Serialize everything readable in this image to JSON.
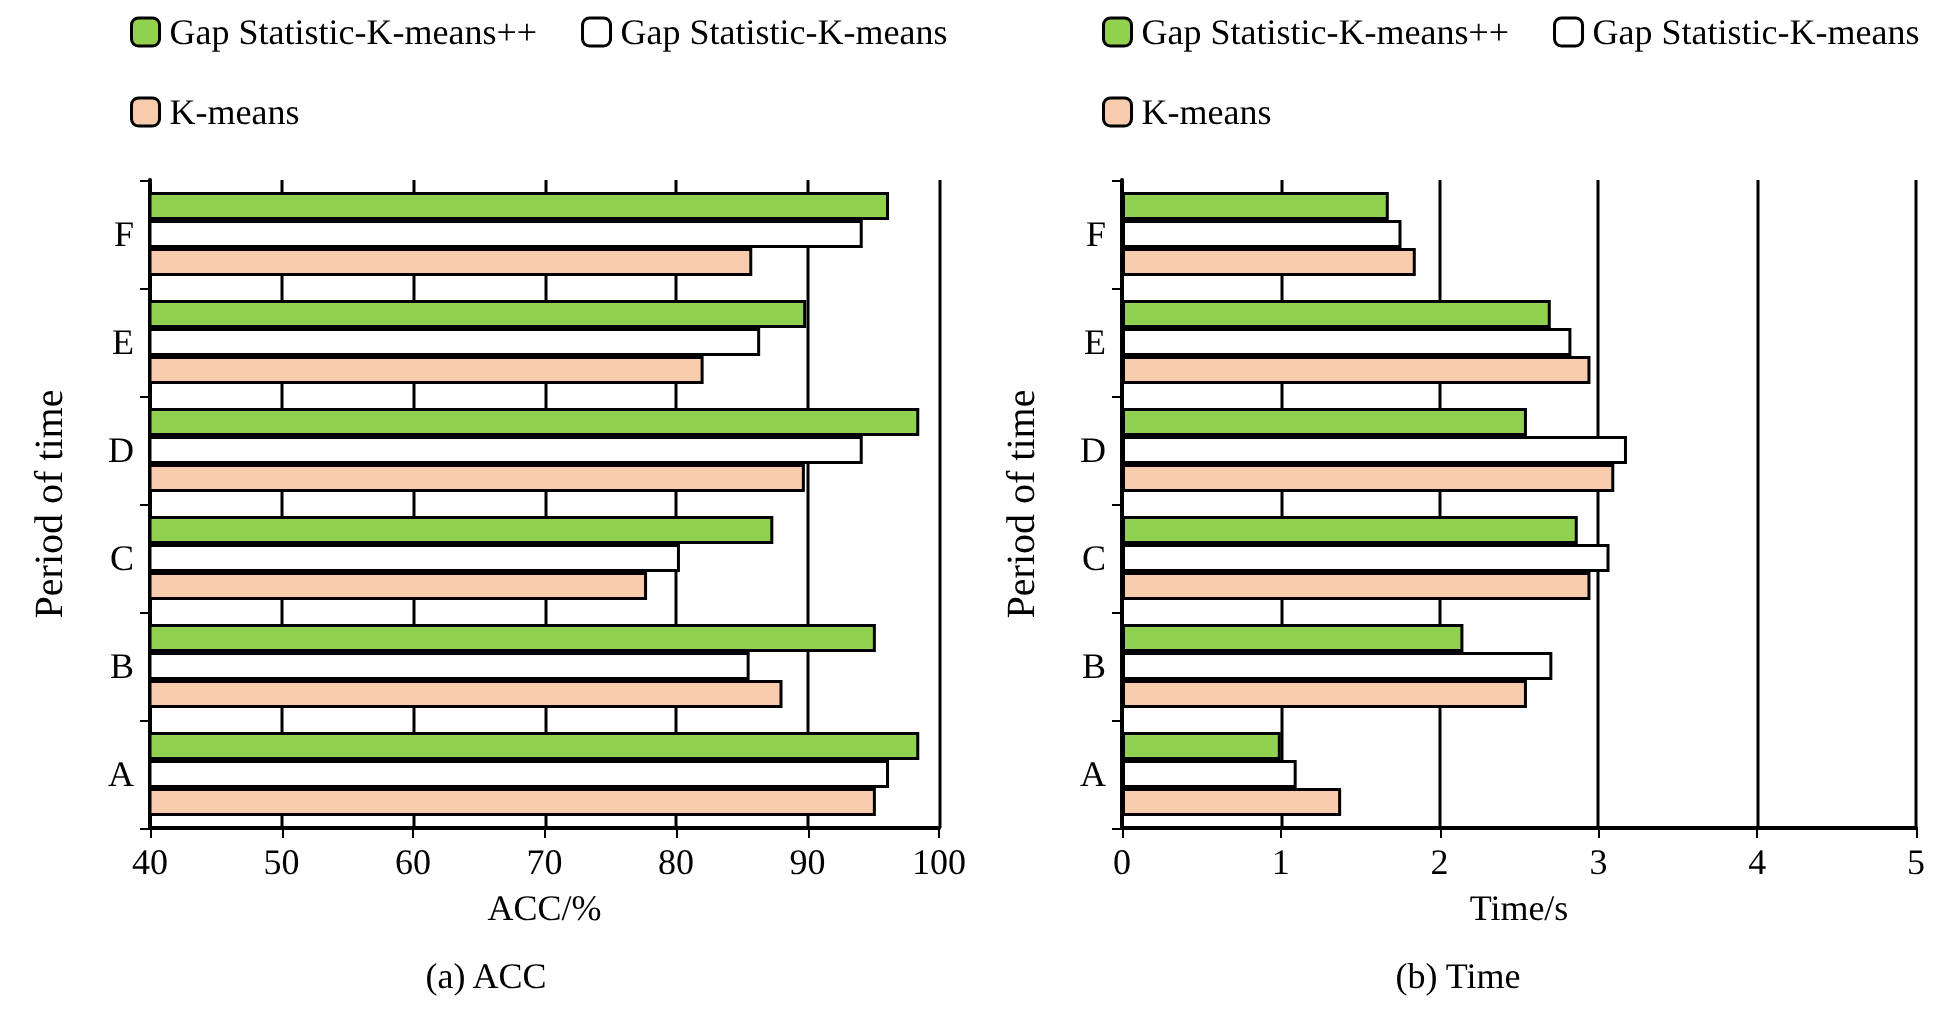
{
  "chart_data": [
    {
      "type": "bar",
      "orientation": "horizontal",
      "title": "(a) ACC",
      "xlabel": "ACC/%",
      "ylabel": "Period of time",
      "categories": [
        "F",
        "E",
        "D",
        "C",
        "B",
        "A"
      ],
      "series": [
        {
          "name": "Gap Statistic-K-means++",
          "color": "#92d050",
          "values": [
            96.2,
            89.9,
            98.5,
            87.4,
            95.2,
            98.5
          ]
        },
        {
          "name": "Gap Statistic-K-means",
          "color": "#ffffff",
          "values": [
            94.2,
            86.4,
            94.2,
            80.3,
            85.6,
            96.2
          ]
        },
        {
          "name": "K-means",
          "color": "#f8cbad",
          "values": [
            85.8,
            82.1,
            89.8,
            77.8,
            88.1,
            95.2
          ]
        }
      ],
      "xlim": [
        40,
        100
      ],
      "xticks": [
        40,
        50,
        60,
        70,
        80,
        90,
        100
      ],
      "grid": "x",
      "legend": "top"
    },
    {
      "type": "bar",
      "orientation": "horizontal",
      "title": "(b) Time",
      "xlabel": "Time/s",
      "ylabel": "Period of time",
      "categories": [
        "F",
        "E",
        "D",
        "C",
        "B",
        "A"
      ],
      "series": [
        {
          "name": "Gap Statistic-K-means++",
          "color": "#92d050",
          "values": [
            1.68,
            2.7,
            2.55,
            2.87,
            2.15,
            1.0
          ]
        },
        {
          "name": "Gap Statistic-K-means",
          "color": "#ffffff",
          "values": [
            1.76,
            2.83,
            3.18,
            3.07,
            2.71,
            1.1
          ]
        },
        {
          "name": "K-means",
          "color": "#f8cbad",
          "values": [
            1.85,
            2.95,
            3.1,
            2.95,
            2.55,
            1.38
          ]
        }
      ],
      "xlim": [
        0,
        5
      ],
      "xticks": [
        0,
        1,
        2,
        3,
        4,
        5
      ],
      "grid": "x",
      "legend": "top"
    }
  ]
}
